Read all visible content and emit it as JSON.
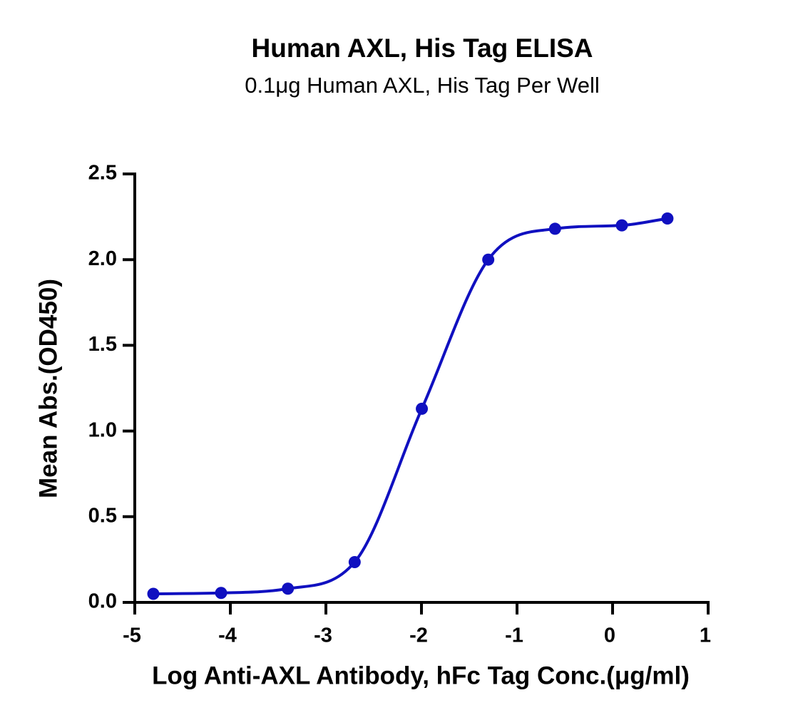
{
  "chart_data": {
    "type": "scatter",
    "title": "Human AXL, His Tag ELISA",
    "subtitle": "0.1μg Human AXL, His Tag Per Well",
    "x_label": "Log Anti-AXL Antibody, hFc Tag Conc.(μg/ml)",
    "y_label": "Mean Abs.(OD450)",
    "x": [
      -4.806,
      -4.097,
      -3.398,
      -2.699,
      -1.996,
      -1.301,
      -0.602,
      0.097,
      0.574
    ],
    "values": [
      0.05,
      0.055,
      0.08,
      0.235,
      1.13,
      2.0,
      2.18,
      2.2,
      2.24
    ],
    "color": "#1010c0",
    "connect_line": true,
    "xlim": [
      -5,
      1
    ],
    "xticks": [
      -5,
      -4,
      -3,
      -2,
      -1,
      0,
      1
    ],
    "ylim": [
      0,
      2.5
    ],
    "yticks": [
      {
        "value": 0,
        "label": "0.0"
      },
      0.5,
      {
        "value": 1,
        "label": "1.0"
      },
      1.5,
      {
        "value": 2,
        "label": "2.0"
      },
      2.5
    ]
  }
}
